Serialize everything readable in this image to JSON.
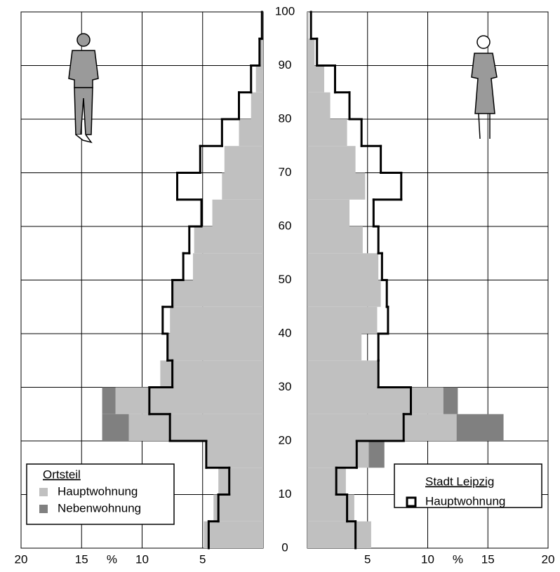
{
  "chart_data": {
    "type": "pyramid",
    "bins": [
      0,
      5,
      10,
      15,
      20,
      25,
      30,
      35,
      40,
      45,
      50,
      55,
      60,
      65,
      70,
      75,
      80,
      85,
      90,
      95,
      100
    ],
    "ylim": [
      0,
      100
    ],
    "yticks": [
      0,
      10,
      20,
      30,
      40,
      50,
      60,
      70,
      80,
      90,
      100
    ],
    "xlim": [
      0,
      20
    ],
    "xticks": [
      5,
      10,
      15,
      20
    ],
    "x_unit": "%",
    "grid": true,
    "groups": [
      {
        "name": "Ortsteil",
        "legend": "bottom-left",
        "series": [
          {
            "name": "Hauptwohnung",
            "color": "#c0c0c0",
            "style": "fill",
            "male": [
              4.9,
              4.1,
              3.7,
              4.6,
              11.1,
              12.2,
              8.5,
              7.9,
              7.7,
              7.5,
              5.8,
              5.7,
              4.2,
              3.4,
              3.2,
              2.0,
              1.0,
              0.6,
              0.3,
              0.1
            ],
            "female": [
              5.3,
              3.9,
              3.2,
              5.1,
              12.4,
              11.3,
              5.8,
              4.5,
              5.8,
              6.1,
              5.9,
              4.6,
              3.5,
              4.8,
              4.0,
              3.3,
              1.9,
              1.4,
              0.6,
              0.1
            ]
          },
          {
            "name": "Nebenwohnung",
            "color": "#808080",
            "style": "fill",
            "male": [
              0,
              0,
              0,
              0,
              2.2,
              1.1,
              0,
              0,
              0,
              0,
              0,
              0,
              0,
              0,
              0,
              0,
              0,
              0,
              0,
              0
            ],
            "female": [
              0,
              0,
              0,
              1.3,
              3.9,
              1.2,
              0,
              0,
              0,
              0,
              0,
              0,
              0,
              0,
              0,
              0,
              0,
              0,
              0,
              0
            ]
          }
        ]
      },
      {
        "name": "Stadt Leipzig",
        "legend": "bottom-right",
        "series": [
          {
            "name": "Hauptwohnung",
            "color": "#000000",
            "style": "outline",
            "male": [
              4.5,
              3.7,
              2.8,
              4.7,
              7.7,
              9.4,
              7.5,
              7.9,
              8.3,
              7.5,
              6.6,
              6.1,
              5.1,
              7.1,
              5.2,
              3.4,
              2.0,
              1.0,
              0.3,
              0.1
            ],
            "female": [
              4.0,
              3.3,
              2.4,
              4.1,
              8.0,
              8.6,
              5.9,
              5.9,
              6.7,
              6.6,
              6.2,
              5.9,
              5.5,
              7.8,
              6.1,
              4.5,
              3.5,
              2.3,
              0.8,
              0.3
            ]
          }
        ]
      }
    ]
  }
}
